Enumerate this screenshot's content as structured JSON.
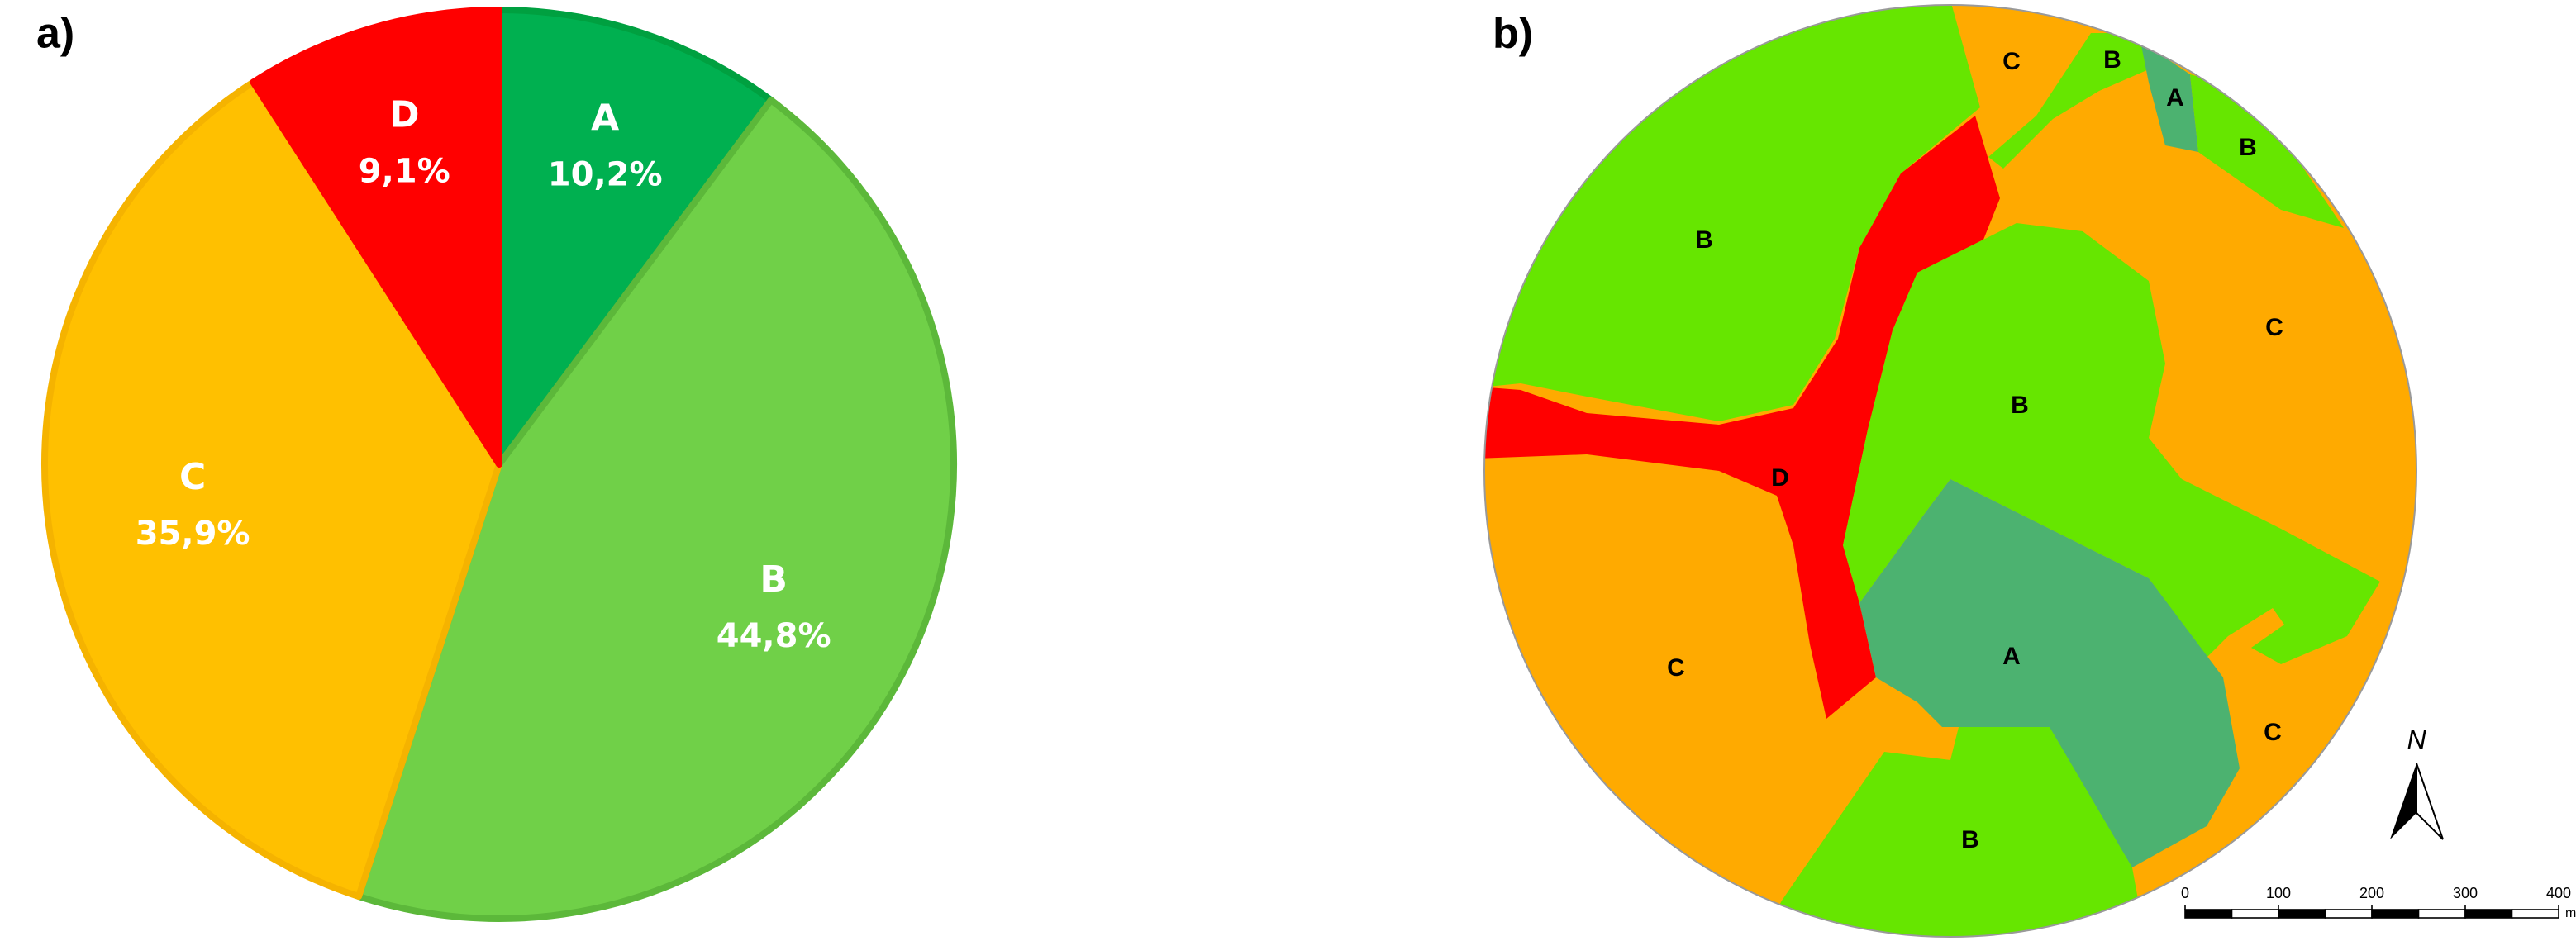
{
  "chart_data": {
    "type": "pie",
    "panel_label": "a)",
    "categories": [
      "A",
      "B",
      "C",
      "D"
    ],
    "values": [
      10.2,
      44.8,
      35.9,
      9.1
    ],
    "value_labels": [
      "10,2%",
      "44,8%",
      "35,9%",
      "9,1%"
    ],
    "colors": [
      "#00b050",
      "#70d048",
      "#ffc000",
      "#ff0000"
    ]
  },
  "map": {
    "panel_label": "b)",
    "regions": [
      "C",
      "B",
      "A",
      "B",
      "B",
      "C",
      "B",
      "D",
      "C",
      "A",
      "C",
      "B"
    ],
    "north": "N",
    "scale": {
      "ticks": [
        0,
        100,
        200,
        300,
        400
      ],
      "unit": "m"
    }
  }
}
